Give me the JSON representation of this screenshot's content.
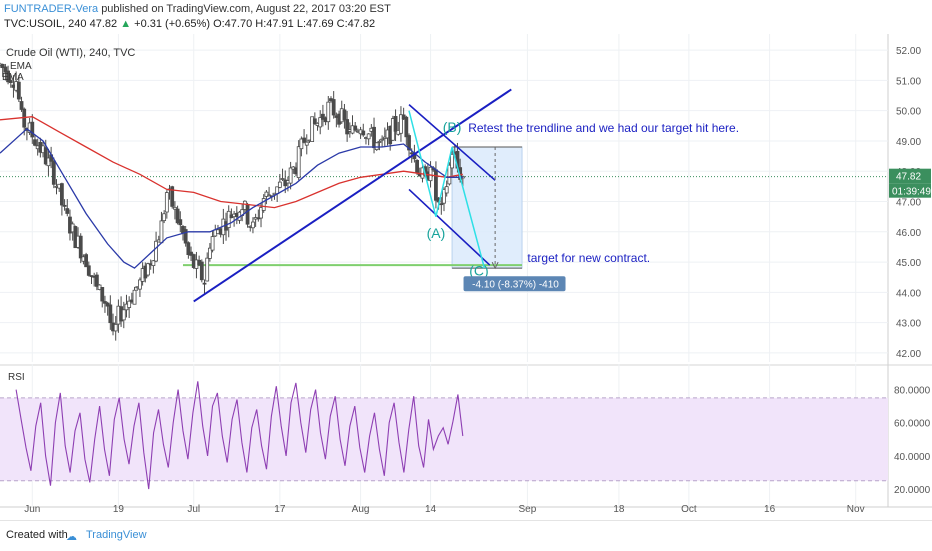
{
  "header": {
    "author": "FUNTRADER-Vera",
    "published": "published on TradingView.com, August 22, 2017 03:20 EST",
    "symbol": "TVC:USOIL, 240",
    "last": "47.82",
    "change": "+0.31 (+0.65%)",
    "open": "O:47.70",
    "high": "H:47.91",
    "low": "L:47.69",
    "close": "C:47.82"
  },
  "footer": {
    "created": "Created with",
    "brand": "TradingView"
  },
  "chart_data": [
    {
      "type": "candlestick",
      "title": "Crude Oil (WTI), 240, TVC",
      "indicators": [
        "EMA",
        "EMA"
      ],
      "ylim": [
        41.7,
        52.4
      ],
      "y_ticks": [
        42,
        43,
        44,
        45,
        46,
        47,
        48,
        49,
        50,
        51,
        52
      ],
      "y_tick_labels": [
        "42.00",
        "43.00",
        "44.00",
        "45.00",
        "46.00",
        "47.00",
        "48.00",
        "49.00",
        "50.00",
        "51.00",
        "52.00"
      ],
      "x_ticks": [
        {
          "label": "Jun",
          "day": 3
        },
        {
          "label": "19",
          "day": 19
        },
        {
          "label": "Jul",
          "day": 33
        },
        {
          "label": "17",
          "day": 49
        },
        {
          "label": "Aug",
          "day": 64
        },
        {
          "label": "14",
          "day": 77
        },
        {
          "label": "Sep",
          "day": 95
        },
        {
          "label": "18",
          "day": 112
        },
        {
          "label": "Oct",
          "day": 125
        },
        {
          "label": "16",
          "day": 140
        },
        {
          "label": "Nov",
          "day": 156
        }
      ],
      "price_path": [
        [
          -3,
          51.5
        ],
        [
          0,
          51.0
        ],
        [
          1,
          49.7
        ],
        [
          3,
          49.2
        ],
        [
          5,
          48.6
        ],
        [
          7,
          47.9
        ],
        [
          9,
          46.6
        ],
        [
          11,
          45.8
        ],
        [
          13,
          45.1
        ],
        [
          15,
          44.1
        ],
        [
          17,
          43.6
        ],
        [
          18,
          42.4
        ],
        [
          19,
          43.2
        ],
        [
          21,
          43.8
        ],
        [
          23,
          44.3
        ],
        [
          25,
          45.1
        ],
        [
          27,
          46.2
        ],
        [
          28,
          47.3
        ],
        [
          29,
          46.9
        ],
        [
          31,
          45.9
        ],
        [
          32,
          45.2
        ],
        [
          33,
          44.9
        ],
        [
          35,
          44.4
        ],
        [
          36,
          45.7
        ],
        [
          38,
          46.2
        ],
        [
          40,
          46.6
        ],
        [
          42,
          46.9
        ],
        [
          44,
          46.1
        ],
        [
          46,
          47.1
        ],
        [
          48,
          47.4
        ],
        [
          50,
          47.6
        ],
        [
          52,
          48.2
        ],
        [
          54,
          49.3
        ],
        [
          56,
          49.6
        ],
        [
          58,
          50.1
        ],
        [
          60,
          49.9
        ],
        [
          62,
          49.2
        ],
        [
          64,
          49.6
        ],
        [
          66,
          49.1
        ],
        [
          68,
          48.8
        ],
        [
          70,
          49.4
        ],
        [
          72,
          49.7
        ],
        [
          74,
          48.4
        ],
        [
          76,
          47.6
        ],
        [
          77,
          48.4
        ],
        [
          78,
          47.1
        ],
        [
          79,
          46.6
        ],
        [
          80,
          47.6
        ],
        [
          81,
          48.7
        ],
        [
          82,
          48.1
        ],
        [
          83,
          47.8
        ]
      ],
      "ema_blue": [
        [
          -3,
          48.6
        ],
        [
          2,
          49.4
        ],
        [
          5,
          49.0
        ],
        [
          9,
          47.8
        ],
        [
          13,
          46.6
        ],
        [
          17,
          45.6
        ],
        [
          20,
          45.0
        ],
        [
          22,
          44.8
        ],
        [
          25,
          45.3
        ],
        [
          28,
          45.8
        ],
        [
          32,
          46.0
        ],
        [
          36,
          46.0
        ],
        [
          40,
          46.3
        ],
        [
          44,
          46.8
        ],
        [
          48,
          47.2
        ],
        [
          52,
          47.6
        ],
        [
          56,
          48.2
        ],
        [
          60,
          48.6
        ],
        [
          64,
          48.8
        ],
        [
          68,
          48.8
        ],
        [
          72,
          48.9
        ],
        [
          76,
          48.3
        ],
        [
          80,
          47.8
        ],
        [
          83,
          47.8
        ]
      ],
      "ema_red": [
        [
          -3,
          49.7
        ],
        [
          3,
          49.8
        ],
        [
          8,
          49.3
        ],
        [
          13,
          48.8
        ],
        [
          18,
          48.3
        ],
        [
          23,
          47.9
        ],
        [
          28,
          47.4
        ],
        [
          33,
          47.3
        ],
        [
          38,
          47.0
        ],
        [
          43,
          46.9
        ],
        [
          48,
          46.8
        ],
        [
          52,
          47.0
        ],
        [
          56,
          47.3
        ],
        [
          60,
          47.6
        ],
        [
          64,
          47.8
        ],
        [
          68,
          47.9
        ],
        [
          72,
          48.0
        ],
        [
          76,
          47.9
        ],
        [
          80,
          47.8
        ],
        [
          83,
          47.9
        ]
      ],
      "drawings": {
        "trendline": [
          [
            33,
            43.7
          ],
          [
            92,
            50.7
          ]
        ],
        "channel_upper": [
          [
            73,
            50.2
          ],
          [
            89,
            47.7
          ]
        ],
        "channel_lower": [
          [
            73,
            47.4
          ],
          [
            88,
            44.9
          ]
        ],
        "wave_path": [
          [
            73,
            50.0
          ],
          [
            78,
            46.5
          ],
          [
            81,
            48.8
          ],
          [
            87,
            44.8
          ]
        ],
        "target_line": {
          "from": 31,
          "to": 94,
          "y": 44.9
        },
        "target_box": {
          "from": 81,
          "to": 94,
          "top": 48.8,
          "bottom": 44.8
        },
        "dashed_arrow": {
          "x": 89,
          "from": 48.8,
          "to": 44.8
        }
      },
      "annotations": [
        {
          "text": "(B)",
          "x": 81,
          "y": 49.3
        },
        {
          "text": "(A)",
          "x": 78,
          "y": 45.8
        },
        {
          "text": "(C)",
          "x": 86,
          "y": 44.55
        },
        {
          "text": "Retest the trendline and we had our target hit here.",
          "x": 84,
          "y": 49.3
        },
        {
          "text": "target for new contract.",
          "x": 95,
          "y": 45.0
        }
      ],
      "measure_label": "-4.10 (-8.37%) -410",
      "price_label": "47.82",
      "countdown_label": "01:39:49"
    },
    {
      "type": "line",
      "title": "RSI",
      "ylim": [
        14,
        93
      ],
      "y_ticks": [
        20,
        40,
        60,
        80
      ],
      "y_tick_labels": [
        "20.0000",
        "40.0000",
        "60.0000",
        "80.0000"
      ],
      "band": [
        25,
        75
      ],
      "values": [
        80,
        62,
        45,
        31,
        58,
        72,
        40,
        22,
        60,
        78,
        46,
        30,
        55,
        66,
        38,
        24,
        50,
        70,
        44,
        28,
        62,
        75,
        50,
        35,
        58,
        72,
        42,
        20,
        54,
        68,
        47,
        33,
        60,
        80,
        55,
        38,
        66,
        85,
        58,
        40,
        70,
        78,
        52,
        36,
        62,
        74,
        48,
        30,
        57,
        68,
        46,
        32,
        64,
        82,
        58,
        40,
        72,
        84,
        60,
        42,
        68,
        80,
        54,
        38,
        64,
        76,
        50,
        34,
        58,
        70,
        45,
        30,
        52,
        66,
        44,
        28,
        60,
        72,
        48,
        30,
        56,
        76,
        46,
        33,
        62,
        44,
        52,
        57,
        47,
        61,
        77,
        52
      ]
    }
  ]
}
